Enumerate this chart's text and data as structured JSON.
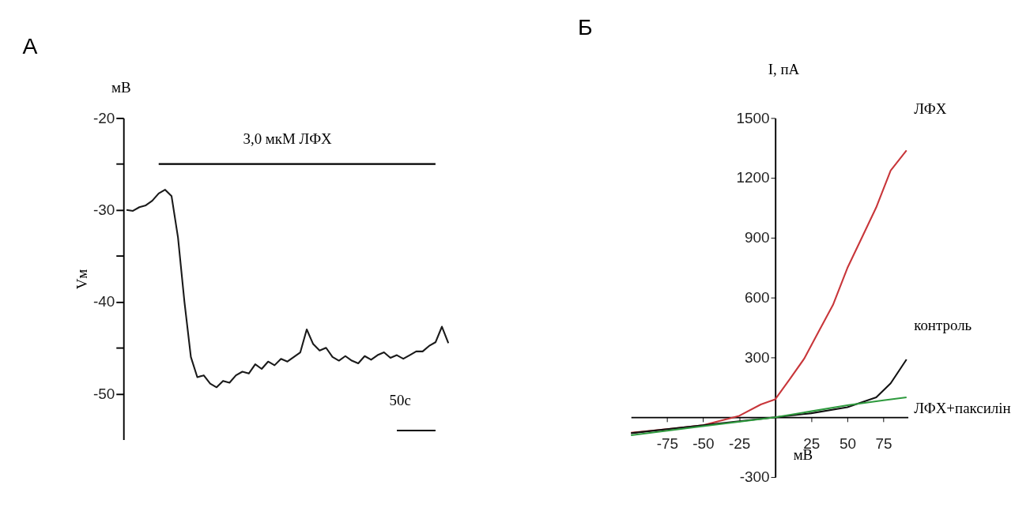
{
  "chart_data": [
    {
      "type": "line",
      "title": "А",
      "ylabel": "Vм",
      "categories": [
        null,
        null,
        null,
        null,
        null,
        null,
        null,
        null,
        null,
        null,
        null,
        null,
        null,
        null,
        null,
        null,
        null,
        null,
        null,
        null,
        null,
        null,
        null,
        null,
        null,
        null,
        null,
        null,
        null,
        null,
        null,
        null,
        null,
        null,
        null,
        null,
        null,
        null,
        null,
        null,
        null,
        null,
        null,
        null,
        null,
        null,
        null,
        null,
        null,
        null,
        null
      ],
      "ylim": [
        -55,
        -20
      ],
      "yticks": [
        -20,
        {
          "value": -25,
          "label": null
        },
        -30,
        {
          "value": -35,
          "label": null
        },
        -40,
        {
          "value": -45,
          "label": null
        },
        -50
      ],
      "grid": false,
      "annotations": [
        "3,0 мкМ ЛФХ",
        "50c",
        "мВ"
      ],
      "series": [
        {
          "color": "#1a1a1a",
          "values": [
            -30.0,
            -30.1,
            -29.7,
            -29.5,
            -29.0,
            -28.2,
            -27.8,
            -28.5,
            -33,
            -40.0,
            -46.0,
            -48.2,
            -48.0,
            -48.9,
            -49.3,
            -48.6,
            -48.8,
            -48.0,
            -47.6,
            -47.8,
            -46.8,
            -47.3,
            -46.5,
            -46.9,
            -46.2,
            -46.5,
            -46.0,
            -45.5,
            -43.0,
            -44.6,
            -45.3,
            -45.0,
            -46.0,
            -46.4,
            -45.9,
            -46.4,
            -46.7,
            -45.9,
            -46.3,
            -45.8,
            -45.5,
            -46.1,
            -45.8,
            -46.2,
            -45.8,
            -45.4,
            -45.4,
            -44.8,
            -44.4,
            -42.7,
            -44.5
          ]
        },
        {
          "color": "#000000",
          "values": [
            null,
            null,
            null,
            null,
            null,
            -25,
            -25,
            -25,
            -25,
            -25,
            -25,
            -25,
            -25,
            -25,
            -25,
            -25,
            -25,
            -25,
            -25,
            -25,
            -25,
            -25,
            -25,
            -25,
            -25,
            -25,
            -25,
            -25,
            -25,
            -25,
            -25,
            -25,
            -25,
            -25,
            -25,
            -25,
            -25,
            -25,
            -25,
            -25,
            -25,
            -25,
            -25,
            -25,
            -25,
            -25,
            -25,
            -25,
            -25,
            null,
            null
          ]
        },
        {
          "color": "#000000",
          "values": [
            null,
            null,
            null,
            null,
            null,
            null,
            null,
            null,
            null,
            null,
            null,
            null,
            null,
            null,
            null,
            null,
            null,
            null,
            null,
            null,
            null,
            null,
            null,
            null,
            null,
            null,
            null,
            null,
            null,
            null,
            null,
            null,
            null,
            null,
            null,
            null,
            null,
            null,
            null,
            null,
            null,
            null,
            -54,
            -54,
            -54,
            -54,
            -54,
            -54,
            -54,
            null,
            null
          ]
        }
      ]
    },
    {
      "type": "line",
      "title": "Б",
      "xlabel": "мВ",
      "ylabel": "I, пА",
      "xlim": [
        -100,
        92
      ],
      "ylim": [
        -300,
        1500
      ],
      "xticks": [
        -75,
        -50,
        -25,
        25,
        50,
        75
      ],
      "yticks": [
        -300,
        300,
        600,
        900,
        1200,
        1500
      ],
      "grid": false,
      "series": [
        {
          "name": "ЛФХ",
          "color": "#c8363a",
          "x": [
            -100,
            -75,
            -50,
            -25,
            -10,
            0,
            10,
            20,
            30,
            40,
            50,
            60,
            70,
            80,
            91
          ],
          "values": [
            -78,
            -60,
            -40,
            7,
            64,
            90,
            190,
            293,
            428,
            563,
            748,
            900,
            1052,
            1237,
            1338
          ]
        },
        {
          "name": "контроль",
          "color": "#111111",
          "x": [
            -100,
            -50,
            0,
            25,
            50,
            70,
            80,
            91
          ],
          "values": [
            -80,
            -40,
            0,
            20,
            50,
            100,
            170,
            290
          ]
        },
        {
          "name": "ЛФХ+паксилін",
          "color": "#2e9a3e",
          "x": [
            -100,
            -50,
            0,
            25,
            50,
            75,
            91
          ],
          "values": [
            -90,
            -45,
            0,
            30,
            60,
            85,
            100
          ]
        }
      ]
    }
  ]
}
